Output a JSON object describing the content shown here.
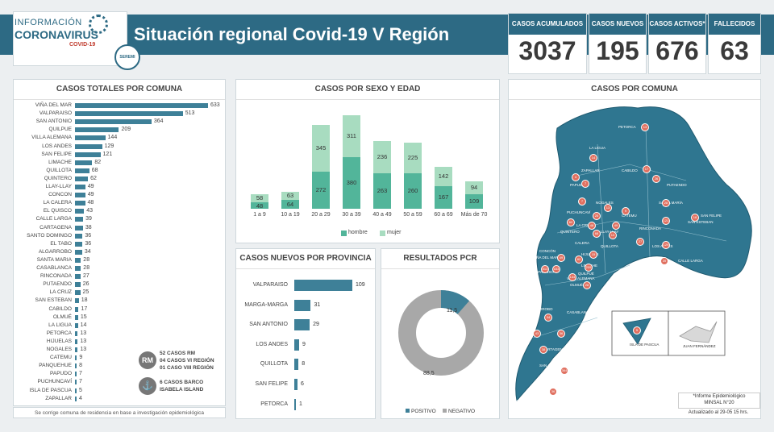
{
  "header": {
    "logo_line1": "INFORMACIÓN",
    "logo_line2": "CORONAVIRUS",
    "logo_line3": "COVID-19",
    "seremi": "SEREMI",
    "title": "Situación regional Covid-19 V Región"
  },
  "kpis": [
    {
      "label": "CASOS ACUMULADOS",
      "value": "3037"
    },
    {
      "label": "CASOS NUEVOS",
      "value": "195"
    },
    {
      "label": "CASOS ACTIVOS*",
      "value": "676"
    },
    {
      "label": "FALLECIDOS",
      "value": "63"
    }
  ],
  "commune_panel": {
    "title": "CASOS TOTALES POR COMUNA",
    "rows": [
      {
        "name": "VIÑA DEL MAR",
        "value": 633
      },
      {
        "name": "VALPARAISO",
        "value": 513
      },
      {
        "name": "SAN ANTONIO",
        "value": 364
      },
      {
        "name": "QUILPUE",
        "value": 209
      },
      {
        "name": "VILLA ALEMANA",
        "value": 144
      },
      {
        "name": "LOS ANDES",
        "value": 129
      },
      {
        "name": "SAN FELIPE",
        "value": 121
      },
      {
        "name": "LIMACHE",
        "value": 82
      },
      {
        "name": "QUILLOTA",
        "value": 68
      },
      {
        "name": "QUINTERO",
        "value": 62
      },
      {
        "name": "LLAY-LLAY",
        "value": 49
      },
      {
        "name": "CONCON",
        "value": 49
      },
      {
        "name": "LA CALERA",
        "value": 48
      },
      {
        "name": "EL QUISCO",
        "value": 43
      },
      {
        "name": "CALLE LARGA",
        "value": 39
      },
      {
        "name": "CARTAGENA",
        "value": 38
      },
      {
        "name": "SANTO DOMINGO",
        "value": 36
      },
      {
        "name": "EL TABO",
        "value": 36
      },
      {
        "name": "ALGARROBO",
        "value": 34
      },
      {
        "name": "SANTA MARIA",
        "value": 28
      },
      {
        "name": "CASABLANCA",
        "value": 28
      },
      {
        "name": "RINCONADA",
        "value": 27
      },
      {
        "name": "PUTAENDO",
        "value": 26
      },
      {
        "name": "LA CRUZ",
        "value": 25
      },
      {
        "name": "SAN ESTEBAN",
        "value": 18
      },
      {
        "name": "CABILDO",
        "value": 17
      },
      {
        "name": "OLMUÉ",
        "value": 15
      },
      {
        "name": "LA LIGUA",
        "value": 14
      },
      {
        "name": "PETORCA",
        "value": 13
      },
      {
        "name": "HIJUELAS",
        "value": 13
      },
      {
        "name": "NOGALES",
        "value": 13
      },
      {
        "name": "CATEMU",
        "value": 9
      },
      {
        "name": "PANQUEHUE",
        "value": 8
      },
      {
        "name": "PAPUDO",
        "value": 7
      },
      {
        "name": "PUCHUNCAVÍ",
        "value": 7
      },
      {
        "name": "ISLA DE PASCUA",
        "value": 5
      },
      {
        "name": "ZAPALLAR",
        "value": 4
      }
    ],
    "rm_badge": "RM",
    "rm_lines": [
      "52 CASOS RM",
      "04 CASOS VI REGIÓN",
      "01 CASO VIII REGIÓN"
    ],
    "ship_lines": [
      "6 CASOS BARCO",
      "ISABELA ISLAND"
    ],
    "footnote": "Se corrige comuna de residencia en base a investigación epidemiológica"
  },
  "chart_data": [
    {
      "type": "bar",
      "title": "CASOS POR SEXO Y EDAD",
      "categories": [
        "1 a 9",
        "10 a 19",
        "20 a 29",
        "30 a 39",
        "40 a 49",
        "50 a 59",
        "60 a 69",
        "Más de 70"
      ],
      "series": [
        {
          "name": "hombre",
          "values": [
            48,
            64,
            272,
            380,
            263,
            260,
            167,
            109
          ]
        },
        {
          "name": "mujer",
          "values": [
            58,
            63,
            345,
            311,
            236,
            225,
            142,
            94
          ]
        }
      ],
      "stacked": true,
      "legend": "bottom",
      "colors": {
        "hombre": "#52b59a",
        "mujer": "#a8dcc0"
      }
    },
    {
      "type": "bar",
      "title": "CASOS NUEVOS  POR PROVINCIA",
      "orientation": "horizontal",
      "categories": [
        "VALPARAISO",
        "MARGA-MARGA",
        "SAN ANTONIO",
        "LOS ANDES",
        "QUILLOTA",
        "SAN FELIPE",
        "PETORCA"
      ],
      "values": [
        109,
        31,
        29,
        9,
        8,
        6,
        1
      ]
    },
    {
      "type": "pie",
      "title": "RESULTADOS PCR",
      "donut": true,
      "categories": [
        "POSITIVO",
        "NEGATIVO"
      ],
      "values": [
        11.5,
        88.5
      ],
      "labels": [
        "11,5",
        "88,5"
      ],
      "colors": {
        "POSITIVO": "#3e8098",
        "NEGATIVO": "#a8a8a8"
      },
      "legend": "bottom"
    }
  ],
  "map_panel": {
    "title": "CASOS POR COMUNA",
    "island1": "ISLA DE PASCUA",
    "island2": "JUAN FERNÁNDEZ",
    "note1": "*Informe Epidemiológico",
    "note2": "MINSAL N°20",
    "updated": "Actualizado al 29-05 15 hrs.",
    "labels": [
      "PETORCA",
      "LA LIGUA",
      "CABILDO",
      "ZAPALLAR",
      "PAPUDO",
      "PUTAENDO",
      "NOGALES",
      "PUCHUNCAVÍ",
      "CATEMU",
      "SANTA MARÍA",
      "LA CRUZ",
      "SAN FELIPE",
      "QUINTERO",
      "LLAY-LLAY",
      "RINCONADA",
      "CALERA",
      "SAN ESTEBAN",
      "QUILLOTA",
      "HIJUELAS",
      "LOS ANDES",
      "CONCÓN",
      "CALLE LARGA",
      "VIÑA DEL MAR",
      "LIMACHE",
      "VALPARAÍSO",
      "QUILPUÉ",
      "OLMUÉ",
      "VILLA ALEMANA",
      "CASABLANCA",
      "ALGARROBO",
      "EL QUISCO",
      "EL TABO",
      "CARTAGENA",
      "SAN ANTONIO",
      "SANTO DOMINGO"
    ],
    "dots": [
      {
        "label": "PETORCA",
        "value": "13"
      },
      {
        "label": "LA LIGUA",
        "value": "14"
      },
      {
        "label": "CABILDO",
        "value": "17"
      },
      {
        "label": "ZAPALLAR",
        "value": "4"
      },
      {
        "label": "PAPUDO",
        "value": "7"
      },
      {
        "label": "PUTAENDO",
        "value": "26"
      },
      {
        "label": "PUCHUNCAVÍ",
        "value": "7"
      },
      {
        "label": "NOGALES",
        "value": "13"
      },
      {
        "label": "CATEMU",
        "value": "9"
      },
      {
        "label": "SANTA MARÍA",
        "value": "28"
      },
      {
        "label": "SAN ESTEBAN",
        "value": "18"
      },
      {
        "label": "QUINTERO",
        "value": "62"
      },
      {
        "label": "LA CRUZ",
        "value": "25"
      },
      {
        "label": "SAN FELIPE",
        "value": "121"
      },
      {
        "label": "CALERA",
        "value": "48"
      },
      {
        "label": "LLAY-LLAY",
        "value": "49"
      },
      {
        "label": "QUILLOTA",
        "value": "68"
      },
      {
        "label": "HIJUELAS",
        "value": "13"
      },
      {
        "label": "RINCONADA",
        "value": "27"
      },
      {
        "label": "LOS ANDES",
        "value": "129"
      },
      {
        "label": "CALLE LARGA",
        "value": "39"
      },
      {
        "label": "CONCÓN",
        "value": "49"
      },
      {
        "label": "LIMACHE",
        "value": "82"
      },
      {
        "label": "OLMUÉ",
        "value": "15"
      },
      {
        "label": "VIÑA DEL MAR",
        "value": "633"
      },
      {
        "label": "QUILPUÉ",
        "value": "209"
      },
      {
        "label": "VILLA ALEMANA",
        "value": "144"
      },
      {
        "label": "VALPARAÍSO",
        "value": "513"
      },
      {
        "label": "CASABLANCA",
        "value": "28"
      },
      {
        "label": "ALGARROBO",
        "value": "34"
      },
      {
        "label": "EL QUISCO",
        "value": "43"
      },
      {
        "label": "EL TABO",
        "value": "36"
      },
      {
        "label": "CARTAGENA",
        "value": "38"
      },
      {
        "label": "SAN ANTONIO",
        "value": "364"
      },
      {
        "label": "SANTO DOMINGO",
        "value": "36"
      },
      {
        "label": "ISLA DE PASCUA",
        "value": "5"
      }
    ]
  },
  "colors": {
    "primary": "#2d6a84",
    "bar": "#3e8098",
    "hombre": "#52b59a",
    "mujer": "#a8dcc0",
    "negative": "#a8a8a8",
    "dot": "#e07060"
  }
}
